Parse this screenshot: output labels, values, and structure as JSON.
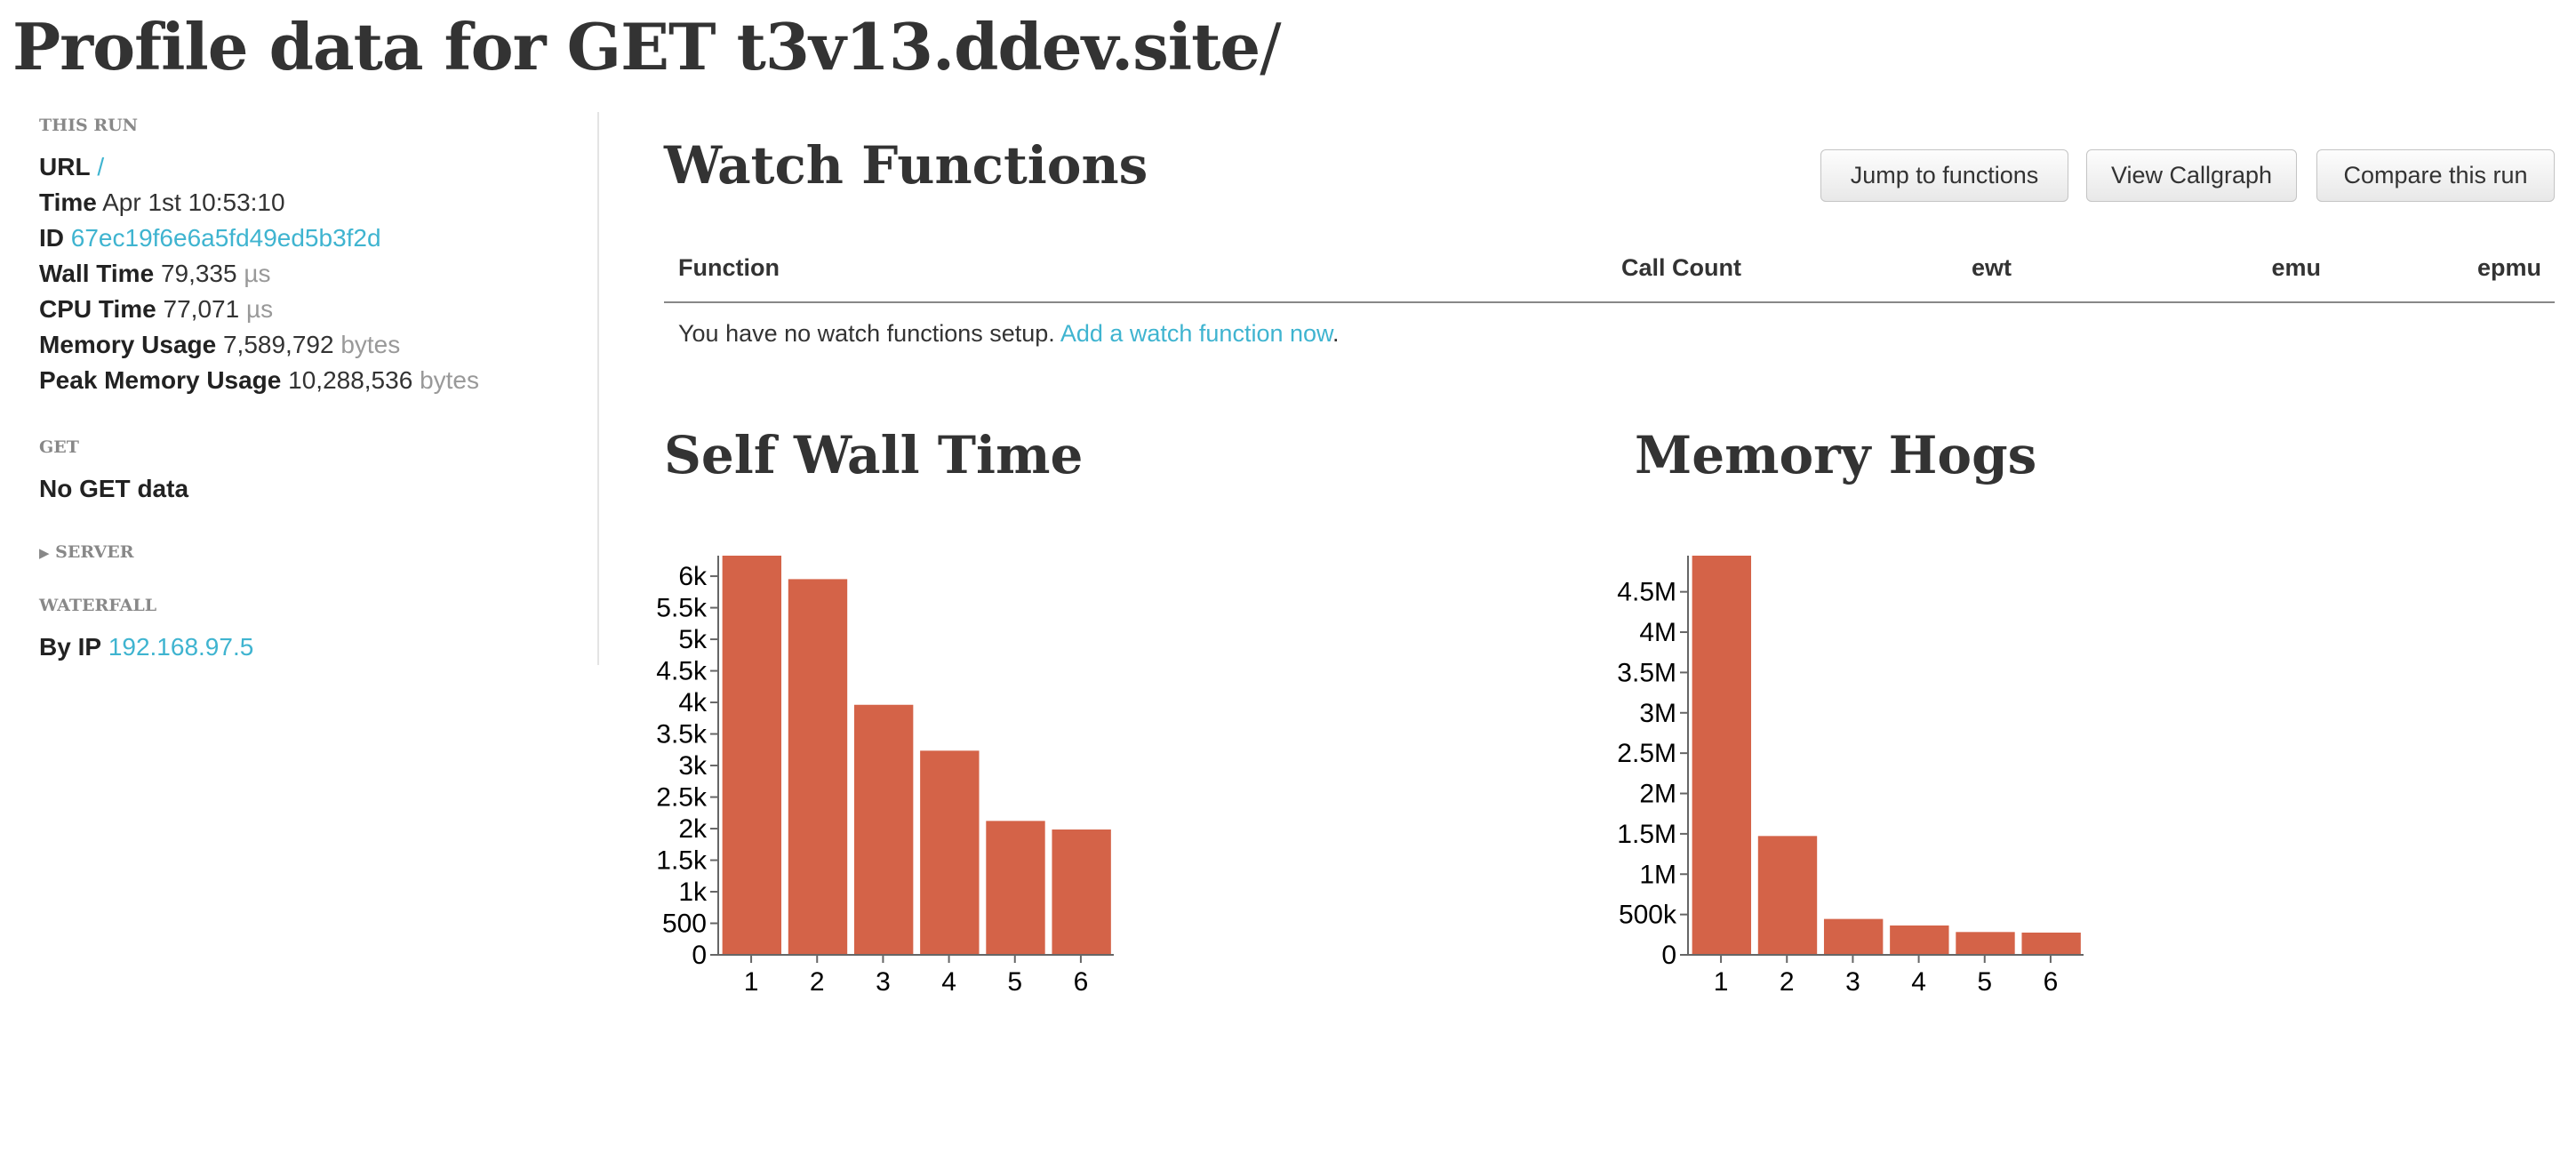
{
  "title": {
    "prefix": "Profile data for GET ",
    "host": "t3v13.ddev.site",
    "path": "/"
  },
  "sidebar": {
    "this_run_heading": "THIS RUN",
    "url": {
      "label": "URL",
      "value": "/"
    },
    "time": {
      "label": "Time",
      "value": "Apr 1st 10:53:10"
    },
    "id": {
      "label": "ID",
      "value": "67ec19f6e6a5fd49ed5b3f2d"
    },
    "wall_time": {
      "label": "Wall Time",
      "value": "79,335",
      "unit": "µs"
    },
    "cpu_time": {
      "label": "CPU Time",
      "value": "77,071",
      "unit": "µs"
    },
    "memory_usage": {
      "label": "Memory Usage",
      "value": "7,589,792",
      "unit": "bytes"
    },
    "peak_memory": {
      "label": "Peak Memory Usage",
      "value": "10,288,536",
      "unit": "bytes"
    },
    "get_heading": "GET",
    "get_value": "No GET data",
    "server_heading": "SERVER",
    "waterfall_heading": "WATERFALL",
    "by_ip": {
      "label": "By IP",
      "value": "192.168.97.5"
    }
  },
  "watch": {
    "heading": "Watch Functions",
    "buttons": {
      "jump": "Jump to functions",
      "callgraph": "View Callgraph",
      "compare": "Compare this run"
    },
    "columns": [
      "Function",
      "Call Count",
      "ewt",
      "emu",
      "epmu"
    ],
    "empty_text": "You have no watch functions setup. ",
    "empty_link": "Add a watch function now",
    "empty_end": "."
  },
  "accent_color": "#d46348",
  "link_color": "#3fb4d0",
  "chart_data": [
    {
      "type": "bar",
      "title": "Self Wall Time",
      "categories": [
        "1",
        "2",
        "3",
        "4",
        "5",
        "6"
      ],
      "values": [
        6325,
        5953,
        3962,
        3235,
        2122,
        1986
      ],
      "ylim": [
        0,
        6325
      ],
      "yticks": [
        0,
        500,
        1000,
        1500,
        2000,
        2500,
        3000,
        3500,
        4000,
        4500,
        5000,
        5500,
        6000
      ],
      "ytick_labels": [
        "0",
        "500",
        "1k",
        "1.5k",
        "2k",
        "2.5k",
        "3k",
        "3.5k",
        "4k",
        "4.5k",
        "5k",
        "5.5k",
        "6k"
      ]
    },
    {
      "type": "bar",
      "title": "Memory Hogs",
      "categories": [
        "1",
        "2",
        "3",
        "4",
        "5",
        "6"
      ],
      "values": [
        4948000,
        1473000,
        445000,
        364000,
        283000,
        276000
      ],
      "ylim": [
        0,
        4948000
      ],
      "yticks": [
        0,
        500000,
        1000000,
        1500000,
        2000000,
        2500000,
        3000000,
        3500000,
        4000000,
        4500000
      ],
      "ytick_labels": [
        "0",
        "500k",
        "1M",
        "1.5M",
        "2M",
        "2.5M",
        "3M",
        "3.5M",
        "4M",
        "4.5M"
      ]
    }
  ]
}
